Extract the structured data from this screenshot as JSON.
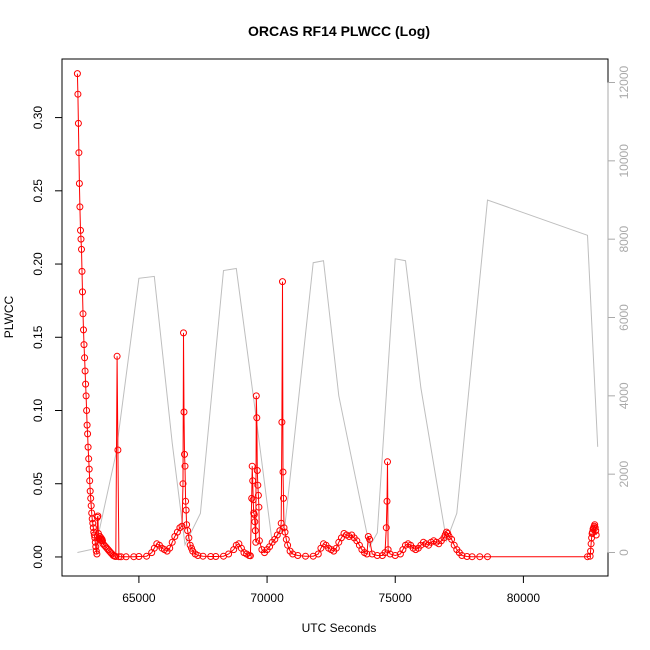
{
  "chart_data": {
    "type": "scatter",
    "title": "ORCAS RF14 PLWCC (Log)",
    "xlabel": "UTC Seconds",
    "ylabel": "PLWCC",
    "xlim": [
      62000,
      83300
    ],
    "ylim": [
      -0.013,
      0.34
    ],
    "y2lim": [
      -600,
      12600
    ],
    "x_ticks": [
      65000,
      70000,
      75000,
      80000
    ],
    "x_tick_labels": [
      "65000",
      "70000",
      "75000",
      "80000"
    ],
    "y_ticks": [
      0.0,
      0.05,
      0.1,
      0.15,
      0.2,
      0.25,
      0.3
    ],
    "y_tick_labels": [
      "0.00",
      "0.05",
      "0.10",
      "0.15",
      "0.20",
      "0.25",
      "0.30"
    ],
    "y2_ticks": [
      0,
      2000,
      4000,
      6000,
      8000,
      10000,
      12000
    ],
    "y2_tick_labels": [
      "0",
      "2000",
      "4000",
      "6000",
      "8000",
      "10000",
      "12000"
    ],
    "grid": false,
    "colors": {
      "plwcc": "#ff0000",
      "secondary": "#bebebe",
      "right_axis": "#aaaaaa"
    },
    "series": [
      {
        "name": "",
        "axis": "left",
        "style": "points-and-lines",
        "color": "#ff0000",
        "points": [
          [
            62600,
            0.33
          ],
          [
            62620,
            0.316
          ],
          [
            62640,
            0.296
          ],
          [
            62660,
            0.276
          ],
          [
            62680,
            0.255
          ],
          [
            62700,
            0.239
          ],
          [
            62720,
            0.223
          ],
          [
            62740,
            0.217
          ],
          [
            62760,
            0.21
          ],
          [
            62780,
            0.195
          ],
          [
            62800,
            0.181
          ],
          [
            62820,
            0.166
          ],
          [
            62840,
            0.155
          ],
          [
            62860,
            0.145
          ],
          [
            62880,
            0.136
          ],
          [
            62900,
            0.127
          ],
          [
            62920,
            0.118
          ],
          [
            62940,
            0.11
          ],
          [
            62960,
            0.1
          ],
          [
            62980,
            0.09
          ],
          [
            63000,
            0.084
          ],
          [
            63020,
            0.075
          ],
          [
            63040,
            0.067
          ],
          [
            63060,
            0.06
          ],
          [
            63080,
            0.052
          ],
          [
            63100,
            0.045
          ],
          [
            63120,
            0.04
          ],
          [
            63140,
            0.035
          ],
          [
            63160,
            0.03
          ],
          [
            63180,
            0.026
          ],
          [
            63200,
            0.023
          ],
          [
            63220,
            0.02
          ],
          [
            63240,
            0.017
          ],
          [
            63260,
            0.015
          ],
          [
            63280,
            0.013
          ],
          [
            63300,
            0.01
          ],
          [
            63320,
            0.007
          ],
          [
            63340,
            0.004
          ],
          [
            63360,
            0.002
          ],
          [
            63380,
            0.027
          ],
          [
            63400,
            0.028
          ],
          [
            63420,
            0.016
          ],
          [
            63440,
            0.013
          ],
          [
            63460,
            0.012
          ],
          [
            63480,
            0.014
          ],
          [
            63500,
            0.012
          ],
          [
            63520,
            0.013
          ],
          [
            63540,
            0.011
          ],
          [
            63560,
            0.012
          ],
          [
            63580,
            0.011
          ],
          [
            63600,
            0.009
          ],
          [
            63650,
            0.008
          ],
          [
            63700,
            0.007
          ],
          [
            63750,
            0.006
          ],
          [
            63800,
            0.005
          ],
          [
            63850,
            0.004
          ],
          [
            63900,
            0.003
          ],
          [
            63950,
            0.002
          ],
          [
            64000,
            0.001
          ],
          [
            64050,
            0.0005
          ],
          [
            64100,
            0.0003
          ],
          [
            64150,
            0.137
          ],
          [
            64180,
            0.073
          ],
          [
            64220,
            0.0002
          ],
          [
            64300,
            0.0001
          ],
          [
            64500,
            0.0001
          ],
          [
            64800,
            0.0002
          ],
          [
            65000,
            0.0003
          ],
          [
            65300,
            0.0005
          ],
          [
            65500,
            0.003
          ],
          [
            65600,
            0.006
          ],
          [
            65700,
            0.009
          ],
          [
            65800,
            0.008
          ],
          [
            65900,
            0.006
          ],
          [
            66000,
            0.005
          ],
          [
            66100,
            0.004
          ],
          [
            66200,
            0.006
          ],
          [
            66300,
            0.01
          ],
          [
            66400,
            0.014
          ],
          [
            66500,
            0.017
          ],
          [
            66600,
            0.02
          ],
          [
            66680,
            0.021
          ],
          [
            66720,
            0.05
          ],
          [
            66740,
            0.153
          ],
          [
            66760,
            0.099
          ],
          [
            66780,
            0.07
          ],
          [
            66800,
            0.062
          ],
          [
            66820,
            0.038
          ],
          [
            66840,
            0.032
          ],
          [
            66860,
            0.022
          ],
          [
            66900,
            0.018
          ],
          [
            66950,
            0.013
          ],
          [
            67000,
            0.008
          ],
          [
            67050,
            0.006
          ],
          [
            67100,
            0.004
          ],
          [
            67200,
            0.002
          ],
          [
            67300,
            0.001
          ],
          [
            67500,
            0.0005
          ],
          [
            67800,
            0.0003
          ],
          [
            68000,
            0.0003
          ],
          [
            68300,
            0.0005
          ],
          [
            68500,
            0.002
          ],
          [
            68700,
            0.005
          ],
          [
            68800,
            0.008
          ],
          [
            68900,
            0.009
          ],
          [
            69000,
            0.006
          ],
          [
            69100,
            0.003
          ],
          [
            69200,
            0.002
          ],
          [
            69300,
            0.001
          ],
          [
            69350,
            0.0008
          ],
          [
            69400,
            0.04
          ],
          [
            69420,
            0.062
          ],
          [
            69440,
            0.052
          ],
          [
            69460,
            0.039
          ],
          [
            69480,
            0.03
          ],
          [
            69500,
            0.029
          ],
          [
            69520,
            0.024
          ],
          [
            69540,
            0.018
          ],
          [
            69560,
            0.01
          ],
          [
            69580,
            0.11
          ],
          [
            69600,
            0.095
          ],
          [
            69620,
            0.059
          ],
          [
            69640,
            0.049
          ],
          [
            69660,
            0.042
          ],
          [
            69680,
            0.034
          ],
          [
            69700,
            0.011
          ],
          [
            69800,
            0.005
          ],
          [
            69900,
            0.003
          ],
          [
            70000,
            0.005
          ],
          [
            70100,
            0.007
          ],
          [
            70200,
            0.01
          ],
          [
            70300,
            0.012
          ],
          [
            70400,
            0.015
          ],
          [
            70500,
            0.018
          ],
          [
            70550,
            0.023
          ],
          [
            70580,
            0.092
          ],
          [
            70600,
            0.188
          ],
          [
            70620,
            0.058
          ],
          [
            70640,
            0.04
          ],
          [
            70660,
            0.02
          ],
          [
            70700,
            0.017
          ],
          [
            70750,
            0.012
          ],
          [
            70800,
            0.008
          ],
          [
            70900,
            0.004
          ],
          [
            71000,
            0.002
          ],
          [
            71200,
            0.001
          ],
          [
            71500,
            0.0005
          ],
          [
            71800,
            0.0005
          ],
          [
            72000,
            0.002
          ],
          [
            72100,
            0.006
          ],
          [
            72200,
            0.009
          ],
          [
            72300,
            0.008
          ],
          [
            72400,
            0.006
          ],
          [
            72500,
            0.005
          ],
          [
            72600,
            0.004
          ],
          [
            72700,
            0.006
          ],
          [
            72800,
            0.01
          ],
          [
            72900,
            0.013
          ],
          [
            73000,
            0.016
          ],
          [
            73100,
            0.015
          ],
          [
            73200,
            0.014
          ],
          [
            73300,
            0.015
          ],
          [
            73400,
            0.013
          ],
          [
            73500,
            0.011
          ],
          [
            73600,
            0.008
          ],
          [
            73700,
            0.005
          ],
          [
            73800,
            0.003
          ],
          [
            73900,
            0.002
          ],
          [
            73950,
            0.014
          ],
          [
            74000,
            0.012
          ],
          [
            74100,
            0.002
          ],
          [
            74300,
            0.001
          ],
          [
            74500,
            0.001
          ],
          [
            74600,
            0.003
          ],
          [
            74650,
            0.02
          ],
          [
            74680,
            0.038
          ],
          [
            74700,
            0.065
          ],
          [
            74720,
            0.005
          ],
          [
            74800,
            0.002
          ],
          [
            75000,
            0.001
          ],
          [
            75200,
            0.002
          ],
          [
            75300,
            0.005
          ],
          [
            75400,
            0.008
          ],
          [
            75500,
            0.009
          ],
          [
            75600,
            0.008
          ],
          [
            75700,
            0.006
          ],
          [
            75800,
            0.005
          ],
          [
            75900,
            0.006
          ],
          [
            76000,
            0.008
          ],
          [
            76100,
            0.01
          ],
          [
            76200,
            0.009
          ],
          [
            76300,
            0.008
          ],
          [
            76400,
            0.01
          ],
          [
            76500,
            0.011
          ],
          [
            76600,
            0.01
          ],
          [
            76700,
            0.009
          ],
          [
            76800,
            0.011
          ],
          [
            76900,
            0.013
          ],
          [
            76950,
            0.015
          ],
          [
            77000,
            0.017
          ],
          [
            77050,
            0.016
          ],
          [
            77100,
            0.014
          ],
          [
            77200,
            0.012
          ],
          [
            77300,
            0.008
          ],
          [
            77400,
            0.005
          ],
          [
            77500,
            0.003
          ],
          [
            77600,
            0.001
          ],
          [
            77800,
            0.0003
          ],
          [
            78000,
            0.0002
          ],
          [
            78300,
            0.0002
          ],
          [
            78600,
            0.0002
          ],
          [
            82500,
            0.0002
          ],
          [
            82600,
            0.0005
          ],
          [
            82620,
            0.004
          ],
          [
            82640,
            0.009
          ],
          [
            82660,
            0.013
          ],
          [
            82680,
            0.016
          ],
          [
            82700,
            0.017
          ],
          [
            82720,
            0.019
          ],
          [
            82740,
            0.02
          ],
          [
            82760,
            0.021
          ],
          [
            82780,
            0.022
          ],
          [
            82800,
            0.02
          ],
          [
            82820,
            0.018
          ],
          [
            82840,
            0.015
          ]
        ]
      },
      {
        "name": "",
        "axis": "right",
        "style": "line",
        "color": "#bebebe",
        "points": [
          [
            62600,
            0
          ],
          [
            63300,
            100
          ],
          [
            64100,
            2500
          ],
          [
            65000,
            7000
          ],
          [
            65600,
            7050
          ],
          [
            66300,
            2800
          ],
          [
            66800,
            200
          ],
          [
            67400,
            1000
          ],
          [
            68300,
            7200
          ],
          [
            68800,
            7250
          ],
          [
            69500,
            3800
          ],
          [
            70200,
            250
          ],
          [
            70700,
            700
          ],
          [
            71800,
            7400
          ],
          [
            72200,
            7450
          ],
          [
            72800,
            4000
          ],
          [
            74000,
            150
          ],
          [
            74300,
            500
          ],
          [
            75000,
            7500
          ],
          [
            75400,
            7450
          ],
          [
            76000,
            4200
          ],
          [
            77000,
            300
          ],
          [
            77400,
            1000
          ],
          [
            78600,
            9000
          ],
          [
            82500,
            8100
          ],
          [
            82900,
            2700
          ]
        ]
      }
    ]
  }
}
